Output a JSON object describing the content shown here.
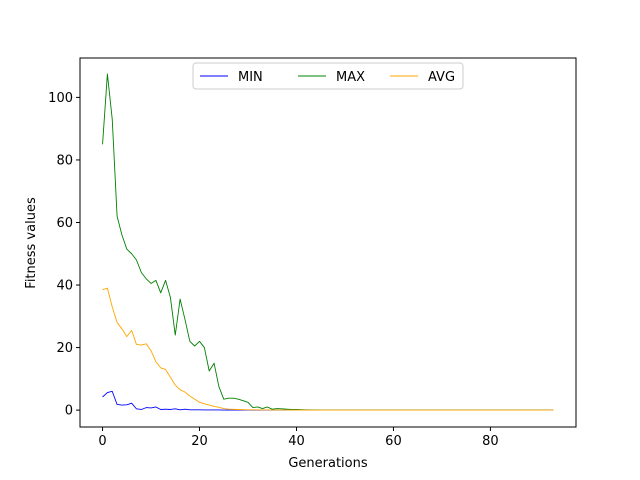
{
  "chart_data": {
    "type": "line",
    "title": "",
    "xlabel": "Generations",
    "ylabel": "Fitness values",
    "xlim": [
      -4.65,
      97.65
    ],
    "ylim": [
      -5.4,
      112.6
    ],
    "xticks": [
      0,
      20,
      40,
      60,
      80
    ],
    "yticks": [
      0,
      20,
      40,
      60,
      80,
      100
    ],
    "grid": false,
    "legend": {
      "placement": "upper center",
      "columns": 3
    },
    "series": [
      {
        "name": "MIN",
        "color": "#0000ff",
        "points": [
          [
            0,
            4.2
          ],
          [
            1,
            5.6
          ],
          [
            2,
            6.0
          ],
          [
            3,
            1.8
          ],
          [
            4,
            1.6
          ],
          [
            5,
            1.7
          ],
          [
            6,
            2.2
          ],
          [
            7,
            0.4
          ],
          [
            8,
            0.2
          ],
          [
            9,
            0.8
          ],
          [
            10,
            0.7
          ],
          [
            11,
            1.0
          ],
          [
            12,
            0.2
          ],
          [
            13,
            0.3
          ],
          [
            14,
            0.2
          ],
          [
            15,
            0.4
          ],
          [
            16,
            0.1
          ],
          [
            17,
            0.3
          ],
          [
            18,
            0.1
          ],
          [
            19,
            0.1
          ],
          [
            20,
            0.1
          ],
          [
            21,
            0.05
          ],
          [
            22,
            0.05
          ],
          [
            23,
            0.05
          ],
          [
            24,
            0.05
          ],
          [
            25,
            0
          ],
          [
            30,
            0
          ],
          [
            40,
            0
          ],
          [
            50,
            0
          ],
          [
            60,
            0
          ],
          [
            70,
            0
          ],
          [
            80,
            0
          ],
          [
            93,
            0
          ]
        ]
      },
      {
        "name": "MAX",
        "color": "#008000",
        "points": [
          [
            0,
            85
          ],
          [
            1,
            107.5
          ],
          [
            2,
            93
          ],
          [
            3,
            62
          ],
          [
            4,
            56
          ],
          [
            5,
            51.5
          ],
          [
            6,
            50
          ],
          [
            7,
            48
          ],
          [
            8,
            44
          ],
          [
            9,
            42
          ],
          [
            10,
            40.5
          ],
          [
            11,
            41.5
          ],
          [
            12,
            37.5
          ],
          [
            13,
            41.5
          ],
          [
            14,
            36
          ],
          [
            15,
            24
          ],
          [
            16,
            35.5
          ],
          [
            17,
            29
          ],
          [
            18,
            22
          ],
          [
            19,
            20.5
          ],
          [
            20,
            22
          ],
          [
            21,
            20
          ],
          [
            22,
            12.5
          ],
          [
            23,
            15
          ],
          [
            24,
            7.5
          ],
          [
            25,
            3.5
          ],
          [
            26,
            3.8
          ],
          [
            27,
            3.8
          ],
          [
            28,
            3.5
          ],
          [
            29,
            3.0
          ],
          [
            30,
            2.5
          ],
          [
            31,
            0.8
          ],
          [
            32,
            1.0
          ],
          [
            33,
            0.5
          ],
          [
            34,
            1.0
          ],
          [
            35,
            0.3
          ],
          [
            36,
            0.5
          ],
          [
            37,
            0.4
          ],
          [
            38,
            0.3
          ],
          [
            39,
            0.2
          ],
          [
            40,
            0.2
          ],
          [
            42,
            0.1
          ],
          [
            45,
            0.05
          ],
          [
            50,
            0
          ],
          [
            60,
            0
          ],
          [
            70,
            0
          ],
          [
            80,
            0
          ],
          [
            93,
            0
          ]
        ]
      },
      {
        "name": "AVG",
        "color": "#ffa500",
        "points": [
          [
            0,
            38.5
          ],
          [
            1,
            39
          ],
          [
            2,
            33
          ],
          [
            3,
            28
          ],
          [
            4,
            26
          ],
          [
            5,
            23.5
          ],
          [
            6,
            25.5
          ],
          [
            7,
            21
          ],
          [
            8,
            20.8
          ],
          [
            9,
            21.2
          ],
          [
            10,
            19
          ],
          [
            11,
            15.5
          ],
          [
            12,
            13.5
          ],
          [
            13,
            13
          ],
          [
            14,
            10.5
          ],
          [
            15,
            8
          ],
          [
            16,
            6.5
          ],
          [
            17,
            5.8
          ],
          [
            18,
            4.5
          ],
          [
            19,
            3.5
          ],
          [
            20,
            2.5
          ],
          [
            21,
            2.0
          ],
          [
            22,
            1.6
          ],
          [
            23,
            1.2
          ],
          [
            24,
            0.9
          ],
          [
            25,
            0.5
          ],
          [
            26,
            0.3
          ],
          [
            28,
            0.2
          ],
          [
            30,
            0.1
          ],
          [
            35,
            0.05
          ],
          [
            40,
            0
          ],
          [
            50,
            0
          ],
          [
            60,
            0
          ],
          [
            70,
            0
          ],
          [
            80,
            0
          ],
          [
            93,
            0
          ]
        ]
      }
    ]
  }
}
